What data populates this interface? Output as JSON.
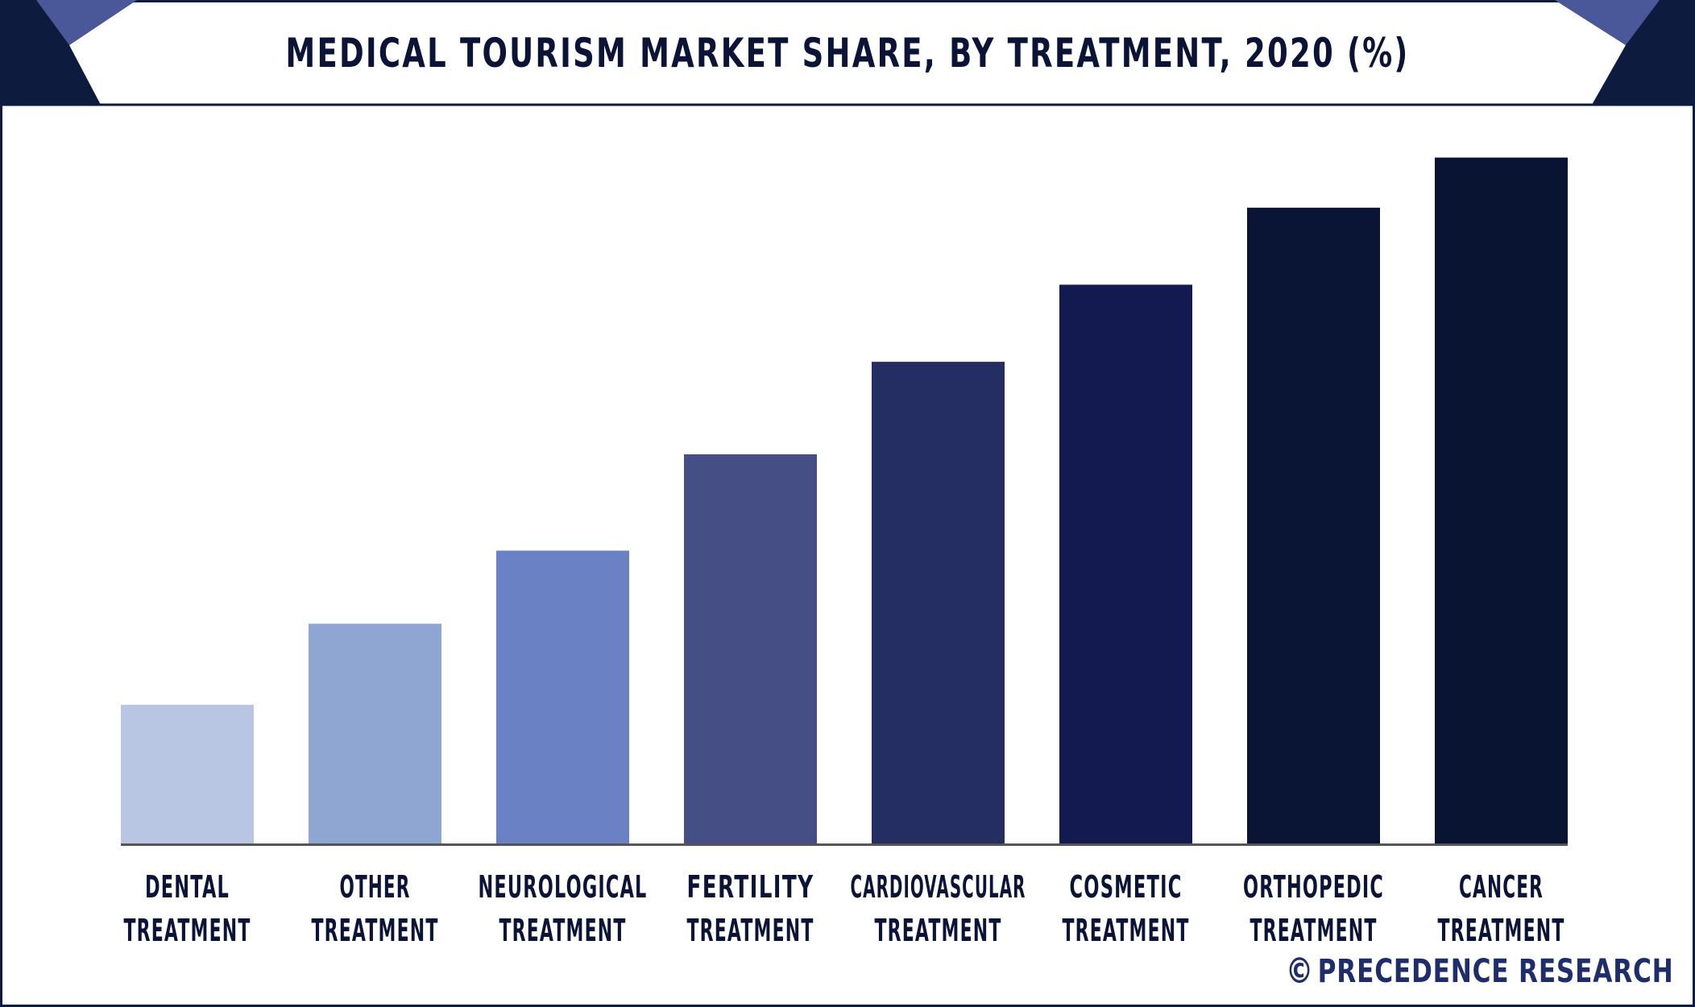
{
  "title": "MEDICAL TOURISM MARKET SHARE, BY TREATMENT, 2020 (%)",
  "footer": {
    "copyright_symbol": "©",
    "brand": "PRECEDENCE RESEARCH"
  },
  "colors": {
    "frame": "#0d1b3e",
    "header_dark": "#0d1b3e",
    "header_accent": "#4a5798",
    "axis": "#555555",
    "text": "#0b1437",
    "footer_text": "#1f2d6b"
  },
  "chart_data": {
    "type": "bar",
    "title": "MEDICAL TOURISM MARKET SHARE, BY TREATMENT, 2020 (%)",
    "xlabel": "",
    "ylabel": "",
    "categories": [
      [
        "DENTAL",
        "TREATMENT"
      ],
      [
        "OTHER",
        "TREATMENT"
      ],
      [
        "NEUROLOGICAL",
        "TREATMENT"
      ],
      [
        "FERTILITY",
        "TREATMENT"
      ],
      [
        "CARDIOVASCULAR",
        "TREATMENT"
      ],
      [
        "COSMETIC",
        "TREATMENT"
      ],
      [
        "ORTHOPEDIC",
        "TREATMENT"
      ],
      [
        "CANCER",
        "TREATMENT"
      ]
    ],
    "values": [
      3.6,
      5.7,
      7.6,
      10.1,
      12.5,
      14.5,
      16.5,
      17.8
    ],
    "ylim": [
      0,
      18
    ],
    "bar_colors": [
      "#b8c5e3",
      "#8fa5d2",
      "#6a82c3",
      "#454f85",
      "#252e63",
      "#131a50",
      "#0a1535",
      "#091433"
    ],
    "grid": false,
    "legend": "none"
  }
}
